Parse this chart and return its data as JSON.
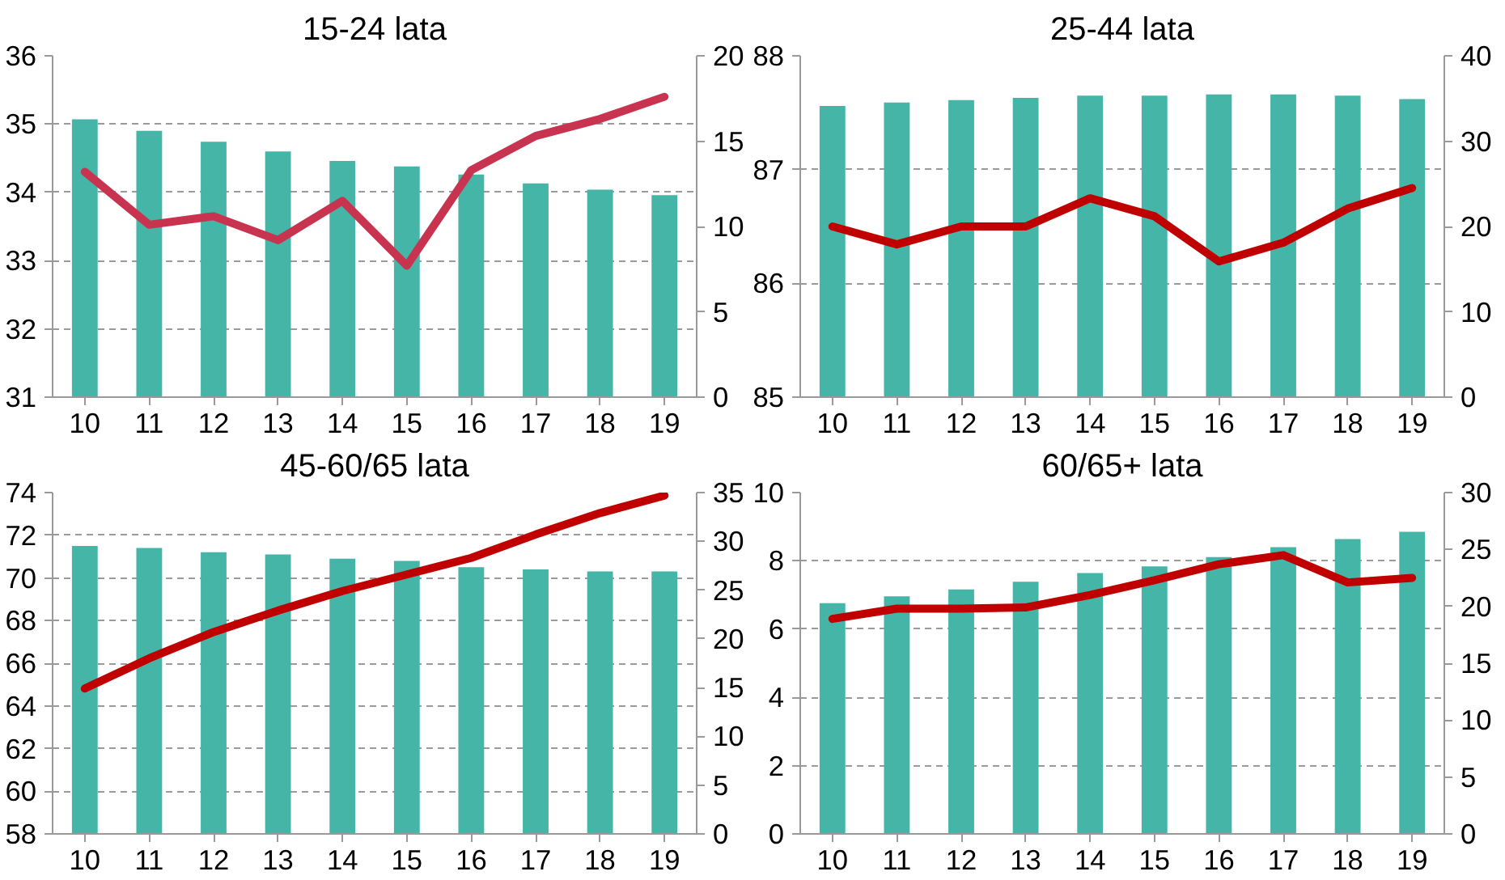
{
  "chart_data": [
    {
      "type": "bar",
      "title": "15-24 lata",
      "categories": [
        "10",
        "11",
        "12",
        "13",
        "14",
        "15",
        "16",
        "17",
        "18",
        "19"
      ],
      "ylim": [
        31,
        36
      ],
      "yticks": [
        31,
        32,
        33,
        34,
        35,
        36
      ],
      "y2lim": [
        0,
        20
      ],
      "y2ticks": [
        0,
        5,
        10,
        15,
        20
      ],
      "grid": "y",
      "series": [
        {
          "color": "#45b5a8",
          "values": [
            35.07,
            34.9,
            34.74,
            34.6,
            34.46,
            34.38,
            34.26,
            34.13,
            34.04,
            33.96
          ]
        },
        {
          "type": "line",
          "axis": "y2",
          "color": "#c8334f",
          "line_style": "solid",
          "values": [
            13.2,
            10.1,
            10.6,
            9.2,
            11.5,
            7.7,
            13.3,
            15.3,
            16.3,
            17.6
          ]
        }
      ]
    },
    {
      "type": "bar",
      "title": "25-44 lata",
      "categories": [
        "10",
        "11",
        "12",
        "13",
        "14",
        "15",
        "16",
        "17",
        "18",
        "19"
      ],
      "ylim": [
        85,
        88
      ],
      "yticks": [
        85,
        86,
        87,
        88
      ],
      "y2lim": [
        0,
        40
      ],
      "y2ticks": [
        0,
        10,
        20,
        30,
        40
      ],
      "grid": "y",
      "series": [
        {
          "color": "#45b5a8",
          "values": [
            87.56,
            87.59,
            87.61,
            87.63,
            87.65,
            87.65,
            87.66,
            87.66,
            87.65,
            87.62
          ]
        },
        {
          "type": "line",
          "axis": "y2",
          "color": "#c00000",
          "line_style": "solid",
          "values": [
            20.0,
            17.9,
            20.0,
            20.0,
            23.3,
            21.2,
            15.9,
            18.1,
            22.1,
            24.5
          ]
        }
      ]
    },
    {
      "type": "bar",
      "title": "45-60/65 lata",
      "categories": [
        "10",
        "11",
        "12",
        "13",
        "14",
        "15",
        "16",
        "17",
        "18",
        "19"
      ],
      "ylim": [
        58,
        74
      ],
      "yticks": [
        58,
        60,
        62,
        64,
        66,
        68,
        70,
        72,
        74
      ],
      "y2lim": [
        0,
        35
      ],
      "y2ticks": [
        0,
        5,
        10,
        15,
        20,
        25,
        30,
        35
      ],
      "grid": "y",
      "series": [
        {
          "color": "#45b5a8",
          "values": [
            71.5,
            71.4,
            71.2,
            71.1,
            70.9,
            70.8,
            70.5,
            70.4,
            70.3,
            70.3
          ]
        },
        {
          "type": "line",
          "axis": "y2",
          "color": "#c00000",
          "line_style": "solid",
          "values": [
            14.9,
            18.0,
            20.7,
            22.9,
            24.9,
            26.6,
            28.3,
            30.7,
            32.9,
            34.7
          ]
        }
      ]
    },
    {
      "type": "bar",
      "title": "60/65+ lata",
      "categories": [
        "10",
        "11",
        "12",
        "13",
        "14",
        "15",
        "16",
        "17",
        "18",
        "19"
      ],
      "ylim": [
        0,
        10
      ],
      "yticks": [
        0,
        2,
        4,
        6,
        8,
        10
      ],
      "y2lim": [
        0,
        30
      ],
      "y2ticks": [
        0,
        5,
        10,
        15,
        20,
        25,
        30
      ],
      "grid": "y",
      "series": [
        {
          "color": "#45b5a8",
          "values": [
            6.76,
            6.96,
            7.16,
            7.39,
            7.64,
            7.84,
            8.11,
            8.4,
            8.64,
            8.85
          ]
        },
        {
          "type": "line",
          "axis": "y2",
          "color": "#c00000",
          "line_style": "solid",
          "values": [
            18.9,
            19.8,
            19.8,
            19.9,
            21.0,
            22.3,
            23.7,
            24.5,
            22.1,
            22.5
          ]
        }
      ]
    }
  ]
}
